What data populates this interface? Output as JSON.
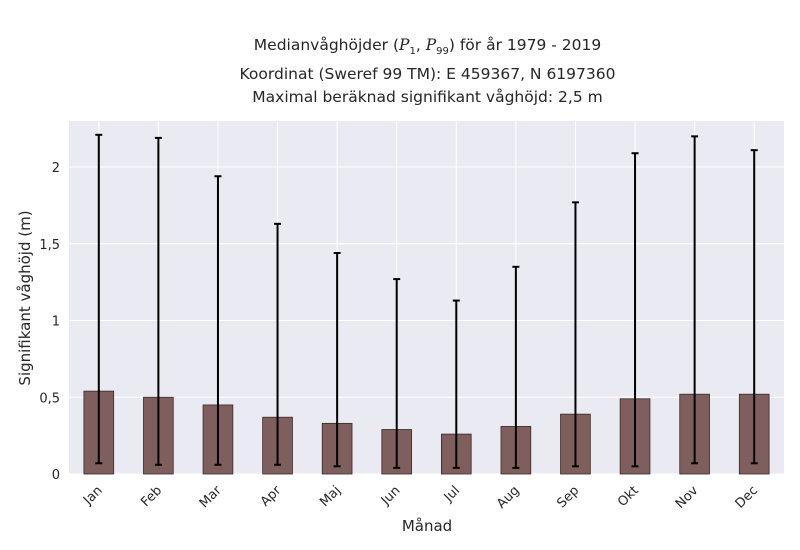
{
  "chart_data": {
    "type": "bar",
    "title_lines": [
      "Medianvåghöjder (P1, P99) för år 1979 - 2019",
      "Koordinat (Sweref 99 TM): E 459367, N 6197360",
      "Maximal beräknad signifikant våghöjd: 2,5 m"
    ],
    "title_parts": {
      "prefix": "Medianvåghöjder (",
      "p": "P",
      "sub1": "1",
      "sep": ", ",
      "sub99": "99",
      "suffix": ") för år 1979 - 2019"
    },
    "xlabel": "Månad",
    "ylabel": "Signifikant våghöjd (m)",
    "categories": [
      "Jan",
      "Feb",
      "Mar",
      "Apr",
      "Maj",
      "Jun",
      "Jul",
      "Aug",
      "Sep",
      "Okt",
      "Nov",
      "Dec"
    ],
    "values": [
      0.54,
      0.5,
      0.45,
      0.37,
      0.33,
      0.29,
      0.26,
      0.31,
      0.39,
      0.49,
      0.52,
      0.52
    ],
    "p1": [
      0.07,
      0.06,
      0.06,
      0.06,
      0.05,
      0.04,
      0.04,
      0.04,
      0.05,
      0.05,
      0.07,
      0.07
    ],
    "p99": [
      2.21,
      2.19,
      1.94,
      1.63,
      1.44,
      1.27,
      1.13,
      1.35,
      1.77,
      2.09,
      2.2,
      2.11
    ],
    "ylim": [
      0,
      2.3
    ],
    "yticks": [
      0,
      0.5,
      1,
      1.5,
      2
    ],
    "ytick_labels": [
      "0",
      "0,5",
      "1",
      "1,5",
      "2"
    ],
    "grid": true,
    "colors": {
      "bar": "#7f5e5e",
      "bar_edge": "#3a2a2a",
      "errorbar": "#000000",
      "plot_background": "#eaeaf2",
      "grid": "#ffffff"
    }
  }
}
